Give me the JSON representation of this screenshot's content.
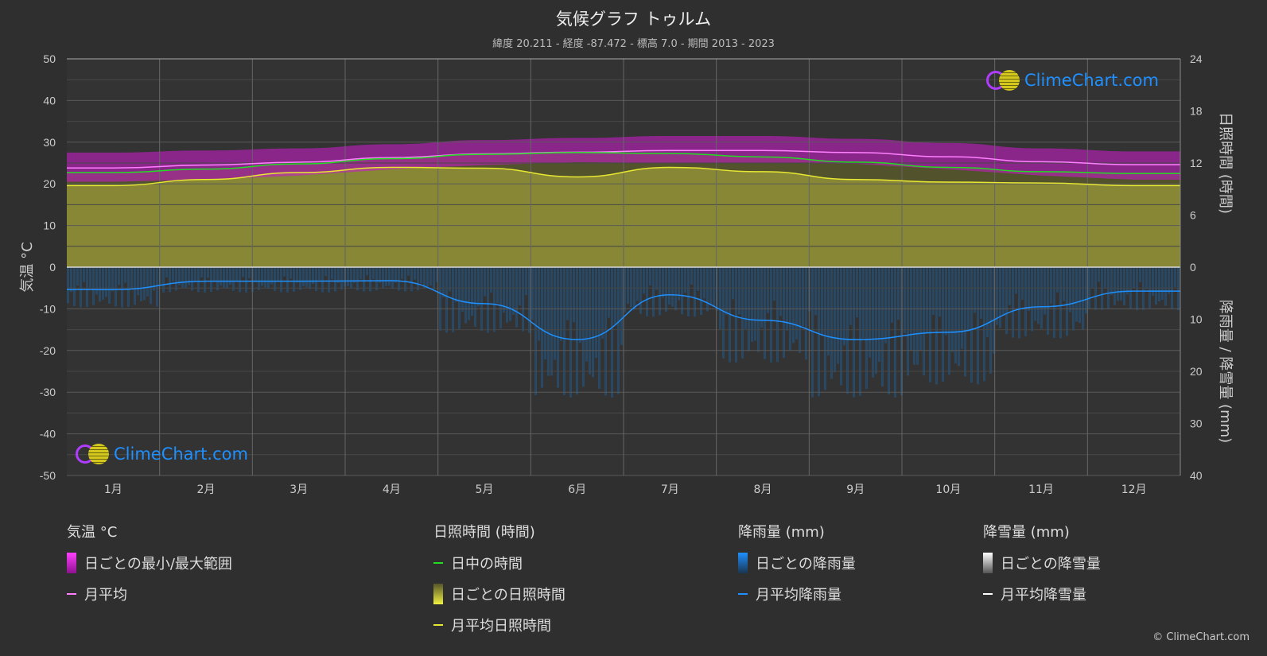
{
  "header": {
    "title": "気候グラフ トゥルム",
    "subtitle": "緯度 20.211 - 経度 -87.472 - 標高 7.0 - 期間 2013 - 2023"
  },
  "logo_text": "ClimeChart.com",
  "copyright": "© ClimeChart.com",
  "colors": {
    "background": "#2f2f2f",
    "temp_range": "#c41cc4",
    "temp_mean": "#ff80ff",
    "daylight": "#22dd22",
    "sunshine_fill": "#8a8a36",
    "sunshine_mean": "#e8e832",
    "rain_fill": "#1f5a8a",
    "rain_mean": "#1e90ff",
    "snow_mean": "#ffffff"
  },
  "chart_data": {
    "type": "line",
    "categories": [
      "1月",
      "2月",
      "3月",
      "4月",
      "5月",
      "6月",
      "7月",
      "8月",
      "9月",
      "10月",
      "11月",
      "12月"
    ],
    "left_axis": {
      "label": "気温 °C",
      "ylim": [
        -50,
        50
      ],
      "ticks": [
        "50",
        "40",
        "30",
        "20",
        "10",
        "0",
        "-10",
        "-20",
        "-30",
        "-40",
        "-50"
      ]
    },
    "right_axis_top": {
      "label": "日照時間 (時間)",
      "ylim": [
        0,
        24
      ],
      "ticks": [
        "24",
        "18",
        "12",
        "6",
        "0"
      ]
    },
    "right_axis_bottom": {
      "label": "降雨量 / 降雪量 (mm)",
      "ylim": [
        0,
        40
      ],
      "ticks": [
        "10",
        "20",
        "30",
        "40"
      ]
    },
    "grid": true,
    "series": [
      {
        "name": "月平均",
        "axis": "temperature",
        "values": [
          23.8,
          24.5,
          25.2,
          26.3,
          27.2,
          27.6,
          28.0,
          28.0,
          27.5,
          26.5,
          25.3,
          24.6
        ]
      },
      {
        "name": "日ごとの最大",
        "axis": "temperature",
        "values": [
          27.5,
          28.0,
          28.5,
          29.5,
          30.5,
          31.0,
          31.5,
          31.5,
          30.8,
          29.8,
          28.5,
          27.8
        ]
      },
      {
        "name": "日ごとの最小",
        "axis": "temperature",
        "values": [
          20.5,
          21.0,
          22.0,
          23.5,
          24.5,
          25.2,
          25.0,
          25.0,
          24.8,
          23.5,
          22.0,
          21.0
        ]
      },
      {
        "name": "日中の時間",
        "axis": "sunshine",
        "values": [
          10.9,
          11.3,
          11.9,
          12.5,
          13.0,
          13.2,
          13.1,
          12.7,
          12.1,
          11.5,
          11.0,
          10.8
        ]
      },
      {
        "name": "月平均日照時間",
        "axis": "sunshine",
        "values": [
          9.4,
          10.1,
          10.9,
          11.5,
          11.4,
          10.4,
          11.5,
          11.0,
          10.1,
          9.8,
          9.7,
          9.4
        ]
      },
      {
        "name": "月平均降雨量",
        "axis": "precipitation",
        "values": [
          4.3,
          2.7,
          2.7,
          2.6,
          7.0,
          13.9,
          5.3,
          10.2,
          13.9,
          12.5,
          7.6,
          4.6
        ]
      },
      {
        "name": "月平均降雪量",
        "axis": "precipitation",
        "values": [
          0,
          0,
          0,
          0,
          0,
          0,
          0,
          0,
          0,
          0,
          0,
          0
        ]
      }
    ]
  },
  "legend": {
    "temperature": {
      "title": "気温 °C",
      "items": [
        "日ごとの最小/最大範囲",
        "月平均"
      ]
    },
    "sunshine": {
      "title": "日照時間 (時間)",
      "items": [
        "日中の時間",
        "日ごとの日照時間",
        "月平均日照時間"
      ]
    },
    "rain": {
      "title": "降雨量 (mm)",
      "items": [
        "日ごとの降雨量",
        "月平均降雨量"
      ]
    },
    "snow": {
      "title": "降雪量 (mm)",
      "items": [
        "日ごとの降雪量",
        "月平均降雪量"
      ]
    }
  }
}
